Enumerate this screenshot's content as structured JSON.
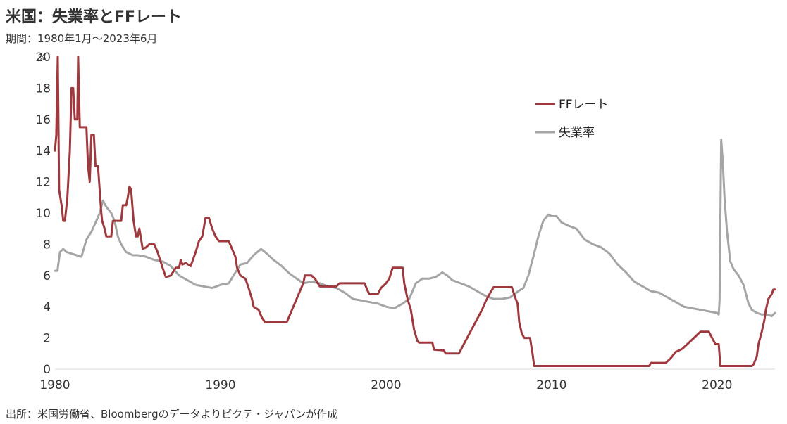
{
  "header": {
    "title": "米国：失業率とFFレート",
    "subtitle": "期間：1980年1月～2023年6月"
  },
  "footer": {
    "source": "出所：米国労働省、Bloombergのデータよりピクテ・ジャパンが作成"
  },
  "chart_data": {
    "type": "line",
    "title": "米国：失業率とFFレート",
    "subtitle": "期間：1980年1月～2023年6月",
    "ylabel": "",
    "y_unit": "%",
    "ylim": [
      0,
      20
    ],
    "y_ticks": [
      "0",
      "2",
      "4",
      "6",
      "8",
      "10",
      "12",
      "14",
      "16",
      "18",
      "20"
    ],
    "xlim": [
      1980.0,
      2023.5
    ],
    "x_ticks": [
      "1980",
      "1990",
      "2000",
      "2010",
      "2020"
    ],
    "grid": false,
    "legend_position": "upper-right",
    "series": [
      {
        "name": "FFレート",
        "color": "#A0393E",
        "points": [
          [
            1980.0,
            14.0
          ],
          [
            1980.08,
            15.0
          ],
          [
            1980.17,
            20.0
          ],
          [
            1980.25,
            11.5
          ],
          [
            1980.4,
            10.5
          ],
          [
            1980.5,
            9.5
          ],
          [
            1980.6,
            9.5
          ],
          [
            1980.75,
            11.0
          ],
          [
            1980.9,
            14.0
          ],
          [
            1981.0,
            18.0
          ],
          [
            1981.1,
            18.0
          ],
          [
            1981.2,
            16.0
          ],
          [
            1981.35,
            16.0
          ],
          [
            1981.4,
            20.0
          ],
          [
            1981.5,
            15.5
          ],
          [
            1981.6,
            15.5
          ],
          [
            1981.9,
            15.5
          ],
          [
            1982.0,
            13.0
          ],
          [
            1982.1,
            12.0
          ],
          [
            1982.2,
            15.0
          ],
          [
            1982.35,
            15.0
          ],
          [
            1982.45,
            13.0
          ],
          [
            1982.6,
            13.0
          ],
          [
            1982.7,
            11.5
          ],
          [
            1982.8,
            10.0
          ],
          [
            1982.85,
            9.5
          ],
          [
            1983.0,
            9.0
          ],
          [
            1983.1,
            8.5
          ],
          [
            1983.4,
            8.5
          ],
          [
            1983.5,
            9.5
          ],
          [
            1984.0,
            9.5
          ],
          [
            1984.1,
            10.5
          ],
          [
            1984.3,
            10.5
          ],
          [
            1984.4,
            11.0
          ],
          [
            1984.5,
            11.7
          ],
          [
            1984.6,
            11.5
          ],
          [
            1984.75,
            9.5
          ],
          [
            1984.9,
            8.5
          ],
          [
            1985.0,
            8.5
          ],
          [
            1985.1,
            9.0
          ],
          [
            1985.3,
            7.7
          ],
          [
            1985.5,
            7.8
          ],
          [
            1985.7,
            8.0
          ],
          [
            1986.0,
            8.0
          ],
          [
            1986.2,
            7.5
          ],
          [
            1986.5,
            6.5
          ],
          [
            1986.7,
            5.9
          ],
          [
            1987.0,
            6.0
          ],
          [
            1987.3,
            6.5
          ],
          [
            1987.5,
            6.5
          ],
          [
            1987.6,
            7.0
          ],
          [
            1987.7,
            6.7
          ],
          [
            1987.9,
            6.8
          ],
          [
            1988.2,
            6.6
          ],
          [
            1988.5,
            7.5
          ],
          [
            1988.7,
            8.2
          ],
          [
            1988.9,
            8.5
          ],
          [
            1989.1,
            9.7
          ],
          [
            1989.3,
            9.7
          ],
          [
            1989.5,
            9.0
          ],
          [
            1989.7,
            8.5
          ],
          [
            1989.9,
            8.2
          ],
          [
            1990.0,
            8.2
          ],
          [
            1990.5,
            8.2
          ],
          [
            1990.7,
            7.7
          ],
          [
            1990.9,
            7.2
          ],
          [
            1991.0,
            6.5
          ],
          [
            1991.2,
            6.0
          ],
          [
            1991.5,
            5.8
          ],
          [
            1991.7,
            5.2
          ],
          [
            1991.9,
            4.5
          ],
          [
            1992.0,
            4.0
          ],
          [
            1992.3,
            3.8
          ],
          [
            1992.5,
            3.3
          ],
          [
            1992.7,
            3.0
          ],
          [
            1993.0,
            3.0
          ],
          [
            1994.0,
            3.0
          ],
          [
            1994.2,
            3.5
          ],
          [
            1994.4,
            4.0
          ],
          [
            1994.6,
            4.5
          ],
          [
            1994.8,
            5.0
          ],
          [
            1995.0,
            5.5
          ],
          [
            1995.1,
            6.0
          ],
          [
            1995.5,
            6.0
          ],
          [
            1995.7,
            5.8
          ],
          [
            1996.0,
            5.3
          ],
          [
            1996.5,
            5.3
          ],
          [
            1997.0,
            5.3
          ],
          [
            1997.2,
            5.5
          ],
          [
            1998.0,
            5.5
          ],
          [
            1998.7,
            5.5
          ],
          [
            1998.9,
            5.0
          ],
          [
            1999.0,
            4.8
          ],
          [
            1999.5,
            4.8
          ],
          [
            1999.7,
            5.2
          ],
          [
            2000.0,
            5.5
          ],
          [
            2000.2,
            5.8
          ],
          [
            2000.4,
            6.5
          ],
          [
            2001.0,
            6.5
          ],
          [
            2001.1,
            5.5
          ],
          [
            2001.3,
            4.5
          ],
          [
            2001.5,
            3.8
          ],
          [
            2001.7,
            2.5
          ],
          [
            2001.9,
            1.8
          ],
          [
            2002.0,
            1.7
          ],
          [
            2002.8,
            1.7
          ],
          [
            2002.9,
            1.25
          ],
          [
            2003.5,
            1.2
          ],
          [
            2003.6,
            1.0
          ],
          [
            2004.4,
            1.0
          ],
          [
            2004.6,
            1.4
          ],
          [
            2004.9,
            2.0
          ],
          [
            2005.2,
            2.6
          ],
          [
            2005.5,
            3.2
          ],
          [
            2005.8,
            3.8
          ],
          [
            2006.0,
            4.3
          ],
          [
            2006.3,
            4.9
          ],
          [
            2006.5,
            5.25
          ],
          [
            2007.0,
            5.25
          ],
          [
            2007.6,
            5.25
          ],
          [
            2007.8,
            4.6
          ],
          [
            2007.95,
            4.2
          ],
          [
            2008.05,
            3.0
          ],
          [
            2008.2,
            2.3
          ],
          [
            2008.35,
            2.0
          ],
          [
            2008.7,
            2.0
          ],
          [
            2008.85,
            1.0
          ],
          [
            2008.95,
            0.2
          ],
          [
            2009.0,
            0.2
          ],
          [
            2015.9,
            0.2
          ],
          [
            2016.0,
            0.4
          ],
          [
            2016.9,
            0.4
          ],
          [
            2017.2,
            0.7
          ],
          [
            2017.5,
            1.1
          ],
          [
            2017.9,
            1.3
          ],
          [
            2018.3,
            1.7
          ],
          [
            2018.6,
            2.0
          ],
          [
            2018.9,
            2.3
          ],
          [
            2019.0,
            2.4
          ],
          [
            2019.5,
            2.4
          ],
          [
            2019.7,
            2.0
          ],
          [
            2019.9,
            1.6
          ],
          [
            2020.1,
            1.6
          ],
          [
            2020.2,
            0.2
          ],
          [
            2022.1,
            0.2
          ],
          [
            2022.2,
            0.3
          ],
          [
            2022.4,
            0.8
          ],
          [
            2022.5,
            1.6
          ],
          [
            2022.7,
            2.4
          ],
          [
            2022.85,
            3.1
          ],
          [
            2022.95,
            3.8
          ],
          [
            2023.1,
            4.5
          ],
          [
            2023.3,
            4.8
          ],
          [
            2023.4,
            5.1
          ],
          [
            2023.5,
            5.1
          ]
        ]
      },
      {
        "name": "失業率",
        "color": "#A5A5A5",
        "points": [
          [
            1980.0,
            6.3
          ],
          [
            1980.15,
            6.3
          ],
          [
            1980.3,
            7.5
          ],
          [
            1980.5,
            7.7
          ],
          [
            1980.7,
            7.5
          ],
          [
            1981.0,
            7.4
          ],
          [
            1981.3,
            7.3
          ],
          [
            1981.6,
            7.2
          ],
          [
            1981.9,
            8.3
          ],
          [
            1982.2,
            8.8
          ],
          [
            1982.5,
            9.5
          ],
          [
            1982.7,
            10.0
          ],
          [
            1982.9,
            10.8
          ],
          [
            1983.1,
            10.4
          ],
          [
            1983.4,
            10.0
          ],
          [
            1983.6,
            9.5
          ],
          [
            1983.8,
            8.5
          ],
          [
            1984.0,
            8.0
          ],
          [
            1984.3,
            7.5
          ],
          [
            1984.7,
            7.3
          ],
          [
            1985.0,
            7.3
          ],
          [
            1985.5,
            7.2
          ],
          [
            1986.0,
            7.0
          ],
          [
            1986.5,
            6.9
          ],
          [
            1987.0,
            6.6
          ],
          [
            1987.5,
            6.0
          ],
          [
            1988.0,
            5.7
          ],
          [
            1988.5,
            5.4
          ],
          [
            1989.0,
            5.3
          ],
          [
            1989.5,
            5.2
          ],
          [
            1990.0,
            5.4
          ],
          [
            1990.5,
            5.5
          ],
          [
            1990.9,
            6.2
          ],
          [
            1991.2,
            6.7
          ],
          [
            1991.6,
            6.8
          ],
          [
            1992.0,
            7.3
          ],
          [
            1992.45,
            7.7
          ],
          [
            1992.8,
            7.4
          ],
          [
            1993.2,
            7.0
          ],
          [
            1993.7,
            6.6
          ],
          [
            1994.2,
            6.1
          ],
          [
            1994.6,
            5.8
          ],
          [
            1995.0,
            5.5
          ],
          [
            1995.5,
            5.6
          ],
          [
            1996.0,
            5.5
          ],
          [
            1996.5,
            5.3
          ],
          [
            1997.0,
            5.2
          ],
          [
            1997.5,
            4.9
          ],
          [
            1998.0,
            4.5
          ],
          [
            1998.5,
            4.4
          ],
          [
            1999.0,
            4.3
          ],
          [
            1999.5,
            4.2
          ],
          [
            2000.0,
            4.0
          ],
          [
            2000.5,
            3.9
          ],
          [
            2001.0,
            4.2
          ],
          [
            2001.4,
            4.5
          ],
          [
            2001.8,
            5.5
          ],
          [
            2002.2,
            5.8
          ],
          [
            2002.6,
            5.8
          ],
          [
            2003.0,
            5.9
          ],
          [
            2003.4,
            6.2
          ],
          [
            2003.7,
            6.0
          ],
          [
            2004.0,
            5.7
          ],
          [
            2004.5,
            5.5
          ],
          [
            2005.0,
            5.3
          ],
          [
            2005.5,
            5.0
          ],
          [
            2006.0,
            4.7
          ],
          [
            2006.5,
            4.5
          ],
          [
            2007.0,
            4.5
          ],
          [
            2007.5,
            4.6
          ],
          [
            2008.0,
            5.0
          ],
          [
            2008.3,
            5.2
          ],
          [
            2008.6,
            6.0
          ],
          [
            2008.9,
            7.2
          ],
          [
            2009.2,
            8.5
          ],
          [
            2009.5,
            9.5
          ],
          [
            2009.8,
            9.9
          ],
          [
            2010.0,
            9.8
          ],
          [
            2010.3,
            9.8
          ],
          [
            2010.6,
            9.4
          ],
          [
            2011.0,
            9.2
          ],
          [
            2011.5,
            9.0
          ],
          [
            2012.0,
            8.3
          ],
          [
            2012.5,
            8.0
          ],
          [
            2013.0,
            7.8
          ],
          [
            2013.5,
            7.4
          ],
          [
            2014.0,
            6.7
          ],
          [
            2014.5,
            6.2
          ],
          [
            2015.0,
            5.6
          ],
          [
            2015.5,
            5.3
          ],
          [
            2016.0,
            5.0
          ],
          [
            2016.5,
            4.9
          ],
          [
            2017.0,
            4.6
          ],
          [
            2017.5,
            4.3
          ],
          [
            2018.0,
            4.0
          ],
          [
            2018.5,
            3.9
          ],
          [
            2019.0,
            3.8
          ],
          [
            2019.5,
            3.7
          ],
          [
            2020.0,
            3.6
          ],
          [
            2020.1,
            3.5
          ],
          [
            2020.15,
            4.4
          ],
          [
            2020.25,
            14.7
          ],
          [
            2020.35,
            13.2
          ],
          [
            2020.45,
            11.0
          ],
          [
            2020.6,
            8.8
          ],
          [
            2020.8,
            6.9
          ],
          [
            2021.0,
            6.4
          ],
          [
            2021.3,
            6.0
          ],
          [
            2021.6,
            5.4
          ],
          [
            2021.9,
            4.2
          ],
          [
            2022.1,
            3.8
          ],
          [
            2022.4,
            3.6
          ],
          [
            2022.7,
            3.5
          ],
          [
            2023.0,
            3.5
          ],
          [
            2023.3,
            3.4
          ],
          [
            2023.5,
            3.6
          ]
        ]
      }
    ]
  }
}
